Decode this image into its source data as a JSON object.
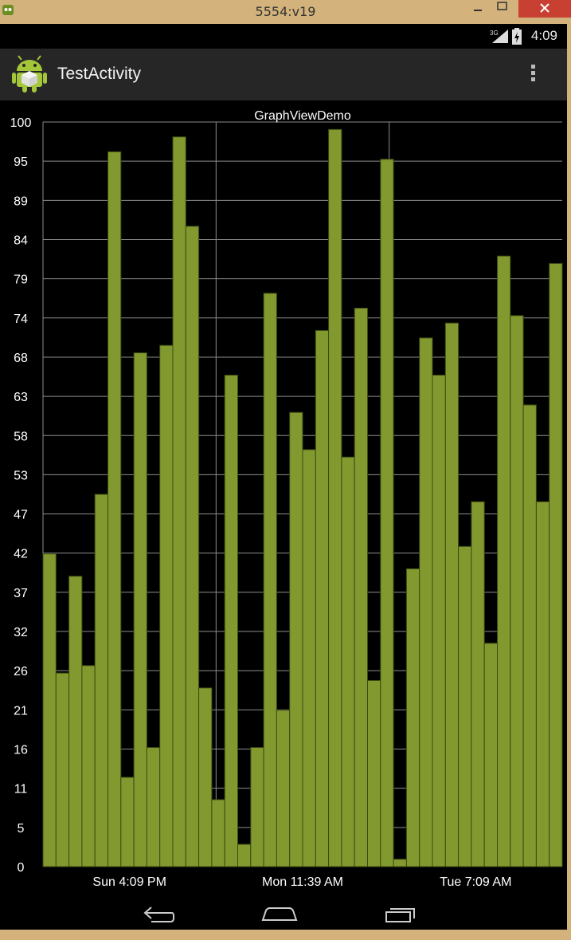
{
  "window": {
    "title": "5554:v19"
  },
  "status_bar": {
    "network": "3G",
    "time": "4:09"
  },
  "action_bar": {
    "title": "TestActivity"
  },
  "chart_data": {
    "type": "bar",
    "title": "GraphViewDemo",
    "ylim": [
      0,
      100
    ],
    "y_tick_labels": [
      "0",
      "5",
      "11",
      "16",
      "21",
      "26",
      "32",
      "37",
      "42",
      "47",
      "53",
      "58",
      "63",
      "68",
      "74",
      "79",
      "84",
      "89",
      "95",
      "100"
    ],
    "x_tick_labels": [
      "Sun 4:09 PM",
      "Mon 11:39 AM",
      "Tue 7:09 AM"
    ],
    "grid": true,
    "values": [
      42,
      26,
      39,
      27,
      50,
      96,
      12,
      69,
      16,
      70,
      98,
      86,
      24,
      9,
      66,
      3,
      16,
      77,
      21,
      61,
      56,
      72,
      99,
      55,
      75,
      25,
      95,
      1,
      40,
      71,
      66,
      73,
      43,
      49,
      30,
      82,
      74,
      62,
      49,
      81
    ],
    "bar_color": "#82992f",
    "bar_edge_color": "#3d4a12",
    "grid_color": "#8c8c8c",
    "label_color": "#ffffff"
  }
}
